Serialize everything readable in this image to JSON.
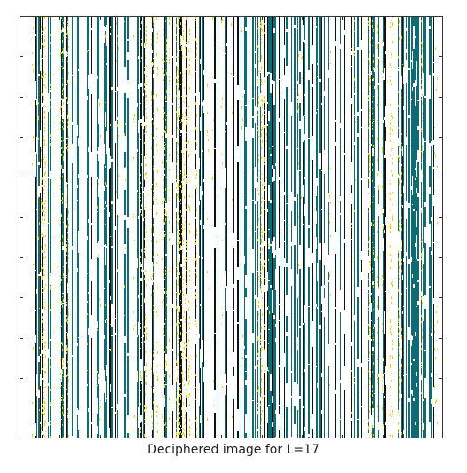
{
  "caption": "Deciphered image for L=17",
  "colors": {
    "teal": "#0f6b73",
    "yellow": "#e8d600",
    "black": "#111111",
    "background": "#ffffff",
    "axis": "#333333"
  }
}
